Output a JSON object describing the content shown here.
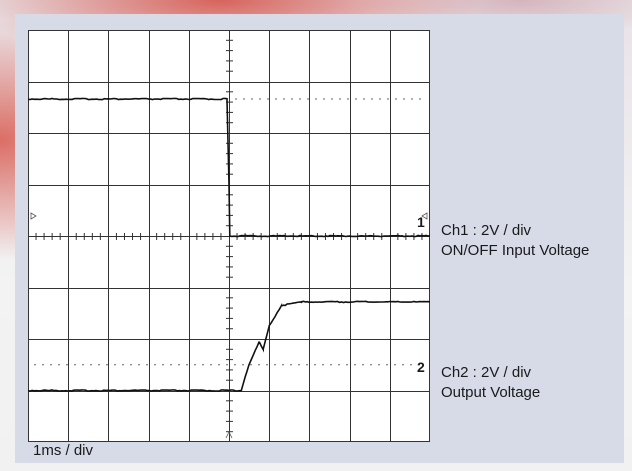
{
  "chart_data": {
    "type": "line",
    "title": "",
    "grid": true,
    "x_divisions": 10,
    "y_divisions": 8,
    "time_scale": "1ms / div",
    "series": [
      {
        "channel": "Ch1",
        "marker": "1",
        "scale": "Ch1 : 2V / div",
        "name": "ON/OFF Input Voltage",
        "level_before_div": 2.66,
        "level_after_div": 0,
        "transition_div": 0,
        "x_div": [
          -5.0,
          -0.05,
          0.0,
          0.02,
          5.0
        ],
        "y_div": [
          2.66,
          2.66,
          1.0,
          0.0,
          0.0
        ]
      },
      {
        "channel": "Ch2",
        "marker": "2",
        "scale": "Ch2 : 2V / div",
        "name": "Output Voltage",
        "x_div": [
          -5.0,
          0.3,
          0.5,
          0.75,
          0.85,
          1.0,
          1.3,
          1.8,
          5.0
        ],
        "y_div": [
          0.0,
          0.0,
          0.5,
          0.95,
          0.8,
          1.25,
          1.65,
          1.72,
          1.72
        ]
      }
    ]
  },
  "labels": {
    "ch1_marker": "1",
    "ch1_scale": "Ch1 : 2V / div",
    "ch1_name": "ON/OFF Input Voltage",
    "ch2_marker": "2",
    "ch2_scale": "Ch2 : 2V / div",
    "ch2_name": "Output Voltage",
    "time_scale": "1ms / div"
  },
  "colors": {
    "panel": "#d6dbe7",
    "screen": "#ffffff",
    "trace": "#111111",
    "grid": "#333333"
  }
}
